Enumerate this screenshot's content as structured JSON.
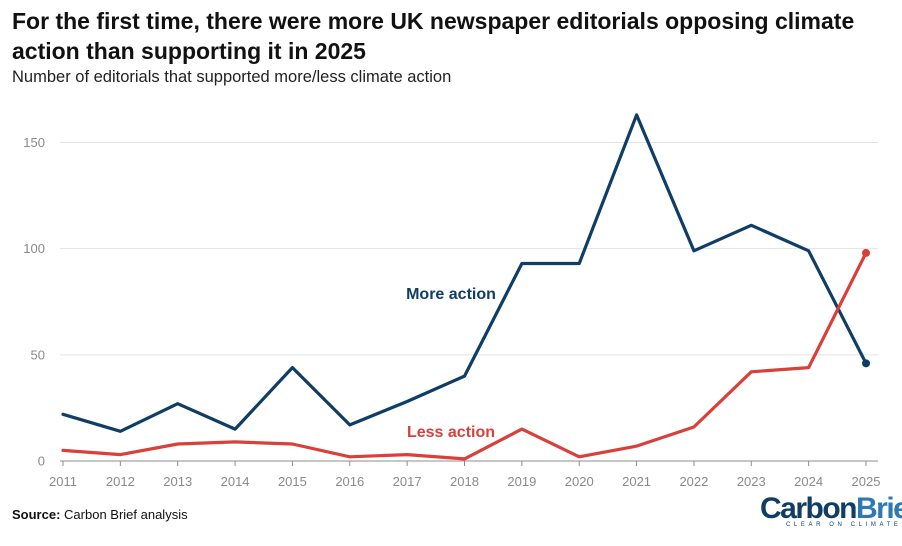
{
  "header": {
    "title": "For the first time, there were more UK newspaper editorials opposing climate action than supporting it in 2025",
    "subtitle": "Number of editorials that supported more/less climate action"
  },
  "footer": {
    "source_label": "Source:",
    "source_text": "Carbon Brief analysis",
    "logo_primary": "Carbon",
    "logo_secondary": "Brief",
    "logo_tagline": "CLEAR ON CLIMATE"
  },
  "chart_data": {
    "type": "line",
    "title": "For the first time, there were more UK newspaper editorials opposing climate action than supporting it in 2025",
    "subtitle": "Number of editorials that supported more/less climate action",
    "x": [
      "2011",
      "2012",
      "2013",
      "2014",
      "2015",
      "2016",
      "2017",
      "2018",
      "2019",
      "2020",
      "2021",
      "2022",
      "2023",
      "2024",
      "2025"
    ],
    "ylim": [
      0,
      170
    ],
    "yticks": [
      0,
      50,
      100,
      150
    ],
    "grid": true,
    "series": [
      {
        "name": "More action",
        "color": "#0f3d66",
        "values": [
          22,
          14,
          27,
          15,
          44,
          17,
          28,
          40,
          93,
          93,
          163,
          99,
          111,
          99,
          46
        ]
      },
      {
        "name": "Less action",
        "color": "#d9403a",
        "values": [
          5,
          3,
          8,
          9,
          8,
          2,
          3,
          1,
          15,
          2,
          7,
          16,
          42,
          44,
          98
        ]
      }
    ]
  }
}
